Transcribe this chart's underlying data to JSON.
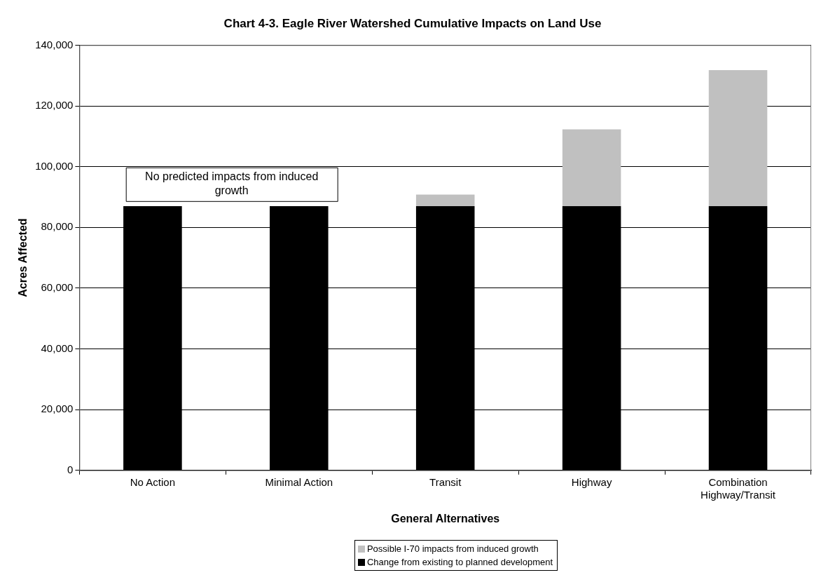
{
  "chart_data": {
    "type": "bar",
    "title": "Chart 4-3. Eagle River Watershed Cumulative Impacts on Land Use",
    "xlabel": "General Alternatives",
    "ylabel": "Acres Affected",
    "categories": [
      "No Action",
      "Minimal Action",
      "Transit",
      "Highway",
      "Combination Highway/Transit"
    ],
    "series": [
      {
        "name": "Change from existing to planned development",
        "color": "#000000",
        "values": [
          87000,
          87000,
          87000,
          87000,
          87000
        ]
      },
      {
        "name": "Possible I-70 impacts from induced growth",
        "color": "#c0c0c0",
        "values": [
          null,
          null,
          3800,
          25300,
          44800
        ]
      }
    ],
    "stacked": true,
    "ylim": [
      0,
      140000
    ],
    "yticks": [
      0,
      {
        "value": 20000,
        "label": "20,000"
      },
      {
        "value": 40000,
        "label": "40,000"
      },
      {
        "value": 60000,
        "label": "60,000"
      },
      {
        "value": 80000,
        "label": "80,000"
      },
      {
        "value": 100000,
        "label": "100,000"
      },
      {
        "value": 120000,
        "label": "120,000"
      },
      {
        "value": 140000,
        "label": "140,000"
      }
    ],
    "grid": "y",
    "legend": "bottom",
    "annotations": [
      "No predicted impacts from induced growth"
    ]
  }
}
